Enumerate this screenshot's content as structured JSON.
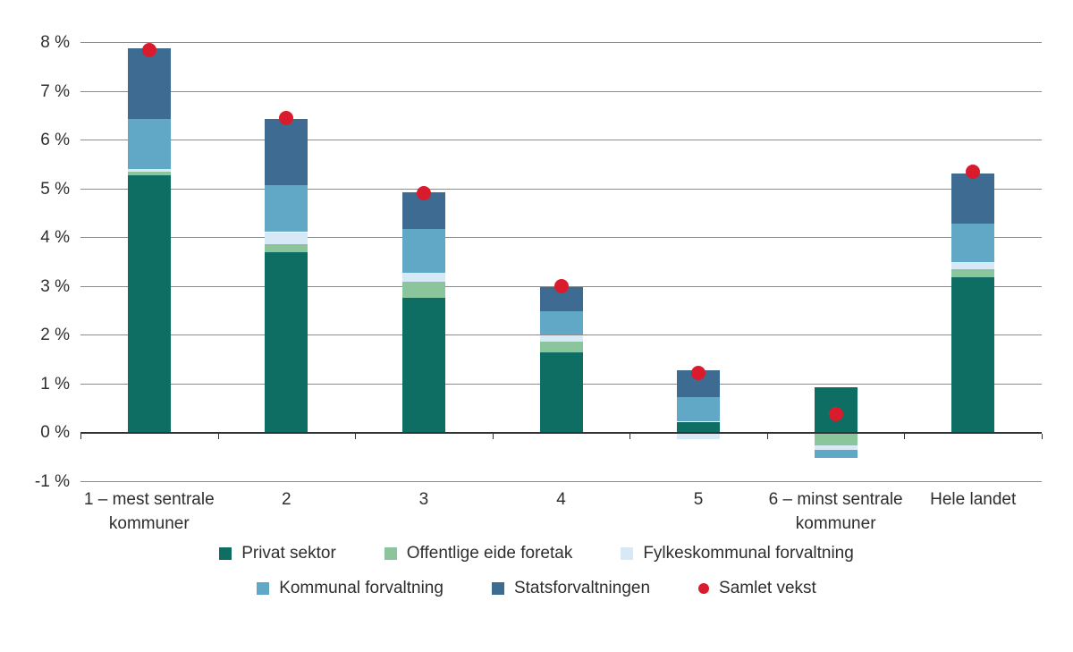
{
  "chart_data": {
    "type": "bar",
    "stacked": true,
    "title": "",
    "xlabel": "",
    "ylabel": "",
    "ylim": [
      -1,
      8
    ],
    "grid": true,
    "legend_position": "bottom",
    "ytick_values": [
      8,
      7,
      6,
      5,
      4,
      3,
      2,
      1,
      0,
      -1
    ],
    "ytick_labels": [
      "8 %",
      "7 %",
      "6 %",
      "5 %",
      "4 %",
      "3 %",
      "2 %",
      "1 %",
      "0 %",
      "-1 %"
    ],
    "categories": [
      "1 – mest sentrale kommuner",
      "2",
      "3",
      "4",
      "5",
      "6 – minst sentrale kommuner",
      "Hele landet"
    ],
    "category_label_lines": [
      [
        "1 – mest sentrale",
        "kommuner"
      ],
      [
        "2"
      ],
      [
        "3"
      ],
      [
        "4"
      ],
      [
        "5"
      ],
      [
        "6 – minst sentrale",
        "kommuner"
      ],
      [
        "Hele landet"
      ]
    ],
    "series": [
      {
        "name": "Privat sektor",
        "color": "#0e6e63",
        "values": [
          5.27,
          3.69,
          2.77,
          1.65,
          0.22,
          0.92,
          3.19
        ]
      },
      {
        "name": "Offentlige eide foretak",
        "color": "#8ac59b",
        "values": [
          0.07,
          0.18,
          0.33,
          0.22,
          0.0,
          -0.26,
          0.15
        ]
      },
      {
        "name": "Fylkeskommunal forvaltning",
        "color": "#d7e8f6",
        "values": [
          0.06,
          0.24,
          0.17,
          0.13,
          -0.13,
          -0.09,
          0.15
        ]
      },
      {
        "name": "Kommunal forvaltning",
        "color": "#61a7c6",
        "values": [
          1.03,
          0.97,
          0.9,
          0.48,
          0.51,
          -0.18,
          0.8
        ]
      },
      {
        "name": "Statsforvaltningen",
        "color": "#3d6b91",
        "values": [
          1.45,
          1.36,
          0.75,
          0.5,
          0.55,
          0.0,
          1.03
        ]
      }
    ],
    "point_series": {
      "name": "Samlet vekst",
      "color": "#da1b2d",
      "values": [
        7.85,
        6.45,
        4.9,
        3.0,
        1.22,
        0.38,
        5.35
      ]
    },
    "legend_rows": [
      [
        "Privat sektor",
        "Offentlige eide foretak",
        "Fylkeskommunal forvaltning"
      ],
      [
        "Kommunal forvaltning",
        "Statsforvaltningen",
        "Samlet vekst"
      ]
    ]
  }
}
